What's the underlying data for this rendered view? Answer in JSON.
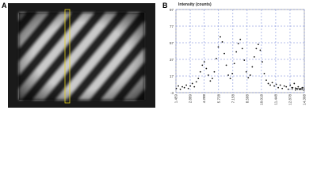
{
  "panel_labels": [
    "A",
    "B"
  ],
  "chart_data": {
    "type": "scatter",
    "y_label": "Intensity (counts)",
    "x_label": "Y (mm)",
    "xlim": [
      1.459,
      14.308
    ],
    "xticks": [
      1.459,
      2.889,
      4.288,
      5.728,
      7.158,
      8.588,
      10.018,
      11.448,
      12.878,
      14.308
    ],
    "ylim": [
      -3,
      97
    ],
    "yticks": [
      -3,
      17,
      37,
      57,
      77,
      97
    ],
    "grid": true,
    "color": "#111111",
    "x": [
      1.5,
      1.7,
      1.9,
      2.1,
      2.3,
      2.5,
      2.7,
      2.9,
      3.1,
      3.3,
      3.5,
      3.7,
      3.9,
      4.1,
      4.3,
      4.5,
      4.7,
      4.9,
      5.1,
      5.3,
      5.5,
      5.7,
      5.9,
      6.1,
      6.3,
      6.5,
      6.7,
      6.9,
      7.1,
      7.3,
      7.5,
      7.7,
      7.9,
      8.1,
      8.3,
      8.5,
      8.7,
      8.9,
      9.1,
      9.3,
      9.5,
      9.7,
      9.9,
      10.1,
      10.3,
      10.5,
      10.7,
      10.9,
      11.1,
      11.3,
      11.5,
      11.7,
      11.9,
      12.1,
      12.3,
      12.5,
      12.7,
      12.9,
      13.1,
      13.3,
      13.5,
      13.7,
      13.9,
      14.1
    ],
    "values": [
      2,
      5,
      1,
      4,
      3,
      6,
      2,
      5,
      8,
      4,
      10,
      14,
      22,
      30,
      34,
      26,
      18,
      11,
      14,
      22,
      38,
      52,
      64,
      58,
      44,
      30,
      18,
      14,
      20,
      32,
      46,
      56,
      61,
      50,
      36,
      22,
      15,
      18,
      28,
      40,
      50,
      55,
      48,
      34,
      20,
      12,
      8,
      6,
      9,
      5,
      7,
      3,
      6,
      2,
      5,
      4,
      1,
      6,
      3,
      8,
      2,
      4,
      1,
      3
    ]
  }
}
